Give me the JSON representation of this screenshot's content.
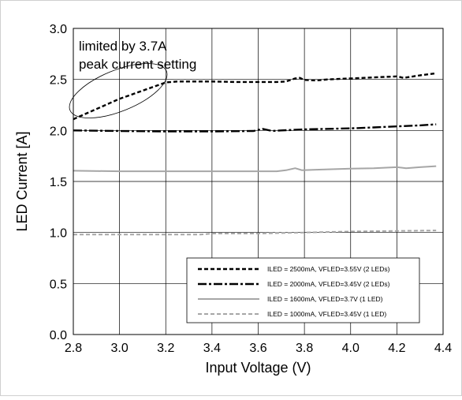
{
  "chart_data": {
    "type": "line",
    "xlabel": "Input Voltage (V)",
    "ylabel": "LED Current [A]",
    "xlim": [
      2.8,
      4.4
    ],
    "ylim": [
      0.0,
      3.0
    ],
    "x_ticks": [
      "2.8",
      "3.0",
      "3.2",
      "3.4",
      "3.6",
      "3.8",
      "4.0",
      "4.2",
      "4.4"
    ],
    "y_ticks": [
      "0.0",
      "0.5",
      "1.0",
      "1.5",
      "2.0",
      "2.5",
      "3.0"
    ],
    "grid": true,
    "legend_position": "bottom-right",
    "annotation": {
      "lines": [
        "limited by 3.7A",
        "peak current setting"
      ]
    },
    "series": [
      {
        "name": "ILED = 2500mA, VFLED=3.55V (2 LEDs)",
        "style": "dashed",
        "color": "#000000",
        "points": [
          [
            2.8,
            2.11
          ],
          [
            2.85,
            2.16
          ],
          [
            2.9,
            2.21
          ],
          [
            2.95,
            2.26
          ],
          [
            3.0,
            2.31
          ],
          [
            3.05,
            2.35
          ],
          [
            3.1,
            2.39
          ],
          [
            3.15,
            2.43
          ],
          [
            3.2,
            2.47
          ],
          [
            3.25,
            2.48
          ],
          [
            3.3,
            2.48
          ],
          [
            3.4,
            2.48
          ],
          [
            3.5,
            2.475
          ],
          [
            3.6,
            2.475
          ],
          [
            3.68,
            2.475
          ],
          [
            3.72,
            2.48
          ],
          [
            3.76,
            2.51
          ],
          [
            3.78,
            2.515
          ],
          [
            3.8,
            2.495
          ],
          [
            3.85,
            2.49
          ],
          [
            3.9,
            2.5
          ],
          [
            4.0,
            2.51
          ],
          [
            4.1,
            2.52
          ],
          [
            4.2,
            2.53
          ],
          [
            4.23,
            2.515
          ],
          [
            4.3,
            2.54
          ],
          [
            4.37,
            2.56
          ]
        ]
      },
      {
        "name": "ILED = 2000mA, VFLED=3.45V (2 LEDs)",
        "style": "dashdot",
        "color": "#000000",
        "points": [
          [
            2.8,
            2.0
          ],
          [
            3.0,
            1.995
          ],
          [
            3.2,
            1.99
          ],
          [
            3.4,
            1.99
          ],
          [
            3.58,
            1.995
          ],
          [
            3.62,
            2.015
          ],
          [
            3.66,
            1.995
          ],
          [
            3.7,
            2.0
          ],
          [
            3.8,
            2.01
          ],
          [
            4.0,
            2.02
          ],
          [
            4.1,
            2.03
          ],
          [
            4.2,
            2.04
          ],
          [
            4.3,
            2.05
          ],
          [
            4.37,
            2.06
          ]
        ]
      },
      {
        "name": "ILED = 1600mA, VFLED=3.7V (1 LED)",
        "style": "solid",
        "color": "#a6a6a6",
        "points": [
          [
            2.8,
            1.605
          ],
          [
            3.0,
            1.6
          ],
          [
            3.2,
            1.6
          ],
          [
            3.4,
            1.6
          ],
          [
            3.6,
            1.6
          ],
          [
            3.68,
            1.6
          ],
          [
            3.72,
            1.61
          ],
          [
            3.76,
            1.63
          ],
          [
            3.79,
            1.61
          ],
          [
            3.85,
            1.615
          ],
          [
            4.0,
            1.625
          ],
          [
            4.1,
            1.63
          ],
          [
            4.2,
            1.64
          ],
          [
            4.24,
            1.63
          ],
          [
            4.3,
            1.64
          ],
          [
            4.37,
            1.65
          ]
        ]
      },
      {
        "name": "ILED = 1000mA, VFLED=3.45V (1 LED)",
        "style": "dashed",
        "color": "#a6a6a6",
        "points": [
          [
            2.8,
            0.98
          ],
          [
            3.0,
            0.98
          ],
          [
            3.2,
            0.98
          ],
          [
            3.35,
            0.98
          ],
          [
            3.4,
            0.99
          ],
          [
            3.6,
            0.99
          ],
          [
            3.8,
            1.0
          ],
          [
            4.0,
            1.01
          ],
          [
            4.2,
            1.015
          ],
          [
            4.37,
            1.02
          ]
        ]
      }
    ]
  }
}
